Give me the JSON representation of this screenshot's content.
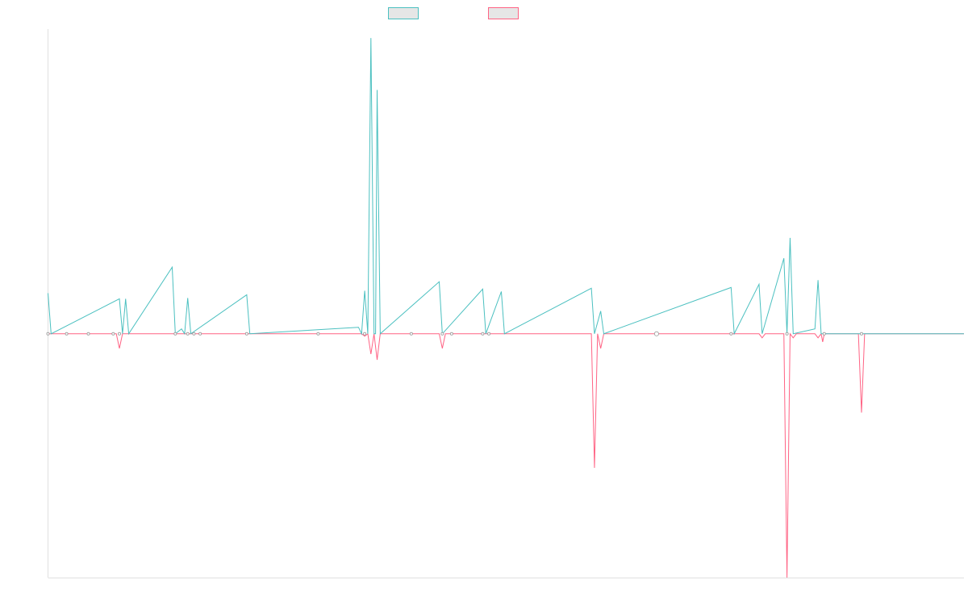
{
  "legend": {
    "position": "top-center"
  },
  "colors": {
    "series_a": "#4bc0c0",
    "series_b": "#ff6384",
    "axis": "#e0e0e0",
    "legend_fill": "#e6e6e6"
  },
  "chart_data": {
    "type": "line",
    "title": "",
    "xlabel": "",
    "ylabel": "",
    "grid": false,
    "ylim": [
      -300,
      375
    ],
    "x_count": 296,
    "series": [
      {
        "name": "",
        "color": "#4bc0c0",
        "points": [
          [
            0,
            50
          ],
          [
            1,
            0
          ],
          [
            23,
            43
          ],
          [
            24,
            0
          ],
          [
            25,
            43
          ],
          [
            26,
            0
          ],
          [
            40,
            82
          ],
          [
            41,
            0
          ],
          [
            43,
            6
          ],
          [
            44,
            0
          ],
          [
            45,
            44
          ],
          [
            46,
            0
          ],
          [
            64,
            48
          ],
          [
            65,
            0
          ],
          [
            100,
            8
          ],
          [
            101,
            0
          ],
          [
            102,
            53
          ],
          [
            103,
            0
          ],
          [
            104,
            364
          ],
          [
            105,
            0
          ],
          [
            105.5,
            0
          ],
          [
            106,
            300
          ],
          [
            107,
            0
          ],
          [
            126,
            64
          ],
          [
            127,
            0
          ],
          [
            140,
            55
          ],
          [
            141,
            0
          ],
          [
            146,
            52
          ],
          [
            147,
            0
          ],
          [
            175,
            56
          ],
          [
            176,
            0
          ],
          [
            178,
            28
          ],
          [
            179,
            0
          ],
          [
            220,
            57
          ],
          [
            221,
            0
          ],
          [
            229,
            61
          ],
          [
            230,
            0
          ],
          [
            237,
            93
          ],
          [
            238,
            0
          ],
          [
            239,
            118
          ],
          [
            240,
            0
          ],
          [
            247,
            6
          ],
          [
            248,
            66
          ],
          [
            249,
            0
          ],
          [
            295,
            0
          ]
        ]
      },
      {
        "name": "",
        "color": "#ff6384",
        "points": [
          [
            0,
            0
          ],
          [
            22,
            0
          ],
          [
            23,
            -18
          ],
          [
            24,
            0
          ],
          [
            101,
            0
          ],
          [
            102,
            -3
          ],
          [
            103,
            0
          ],
          [
            104,
            -25
          ],
          [
            105,
            0
          ],
          [
            106,
            -32
          ],
          [
            107,
            0
          ],
          [
            126,
            0
          ],
          [
            127,
            -18
          ],
          [
            128,
            0
          ],
          [
            175,
            0
          ],
          [
            176,
            -165
          ],
          [
            177,
            0
          ],
          [
            178,
            -18
          ],
          [
            179,
            0
          ],
          [
            229,
            0
          ],
          [
            230,
            -5
          ],
          [
            231,
            0
          ],
          [
            237,
            0
          ],
          [
            238,
            -300
          ],
          [
            239,
            0
          ],
          [
            240,
            -5
          ],
          [
            241,
            0
          ],
          [
            247,
            0
          ],
          [
            248,
            -5
          ],
          [
            249,
            0
          ],
          [
            249.5,
            -10
          ],
          [
            250,
            0
          ],
          [
            261,
            0
          ],
          [
            262,
            -97
          ],
          [
            263,
            0
          ],
          [
            295,
            0
          ]
        ]
      }
    ],
    "markers": [
      0,
      6,
      13,
      21,
      23,
      41,
      45,
      47,
      49,
      64,
      87,
      102,
      117,
      127,
      130,
      140,
      142,
      196,
      220,
      238,
      250,
      262
    ]
  }
}
